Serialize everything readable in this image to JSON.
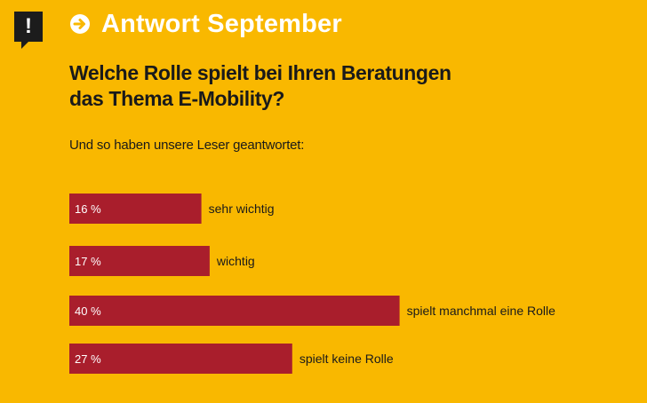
{
  "header": {
    "alert_glyph": "!",
    "title": "Antwort September",
    "arrow_icon": "arrow-right-circle-icon",
    "accent_color": "#F9B800",
    "header_text_color": "#ffffff"
  },
  "question": {
    "line1": "Welche Rolle spielt bei Ihren Beratungen",
    "line2": "das Thema E-Mobility?"
  },
  "subtitle": "Und so haben unsere Leser geantwortet:",
  "chart_data": {
    "type": "bar",
    "orientation": "horizontal",
    "categories": [
      "sehr wichtig",
      "wichtig",
      "spielt manchmal eine Rolle",
      "spielt keine Rolle"
    ],
    "values": [
      16,
      17,
      40,
      27
    ],
    "value_labels": [
      "16 %",
      "17 %",
      "40 %",
      "27 %"
    ],
    "unit": "%",
    "bar_color": "#A91E2C",
    "title": "",
    "xlabel": "",
    "ylabel": "",
    "grid": false,
    "legend": "none"
  }
}
